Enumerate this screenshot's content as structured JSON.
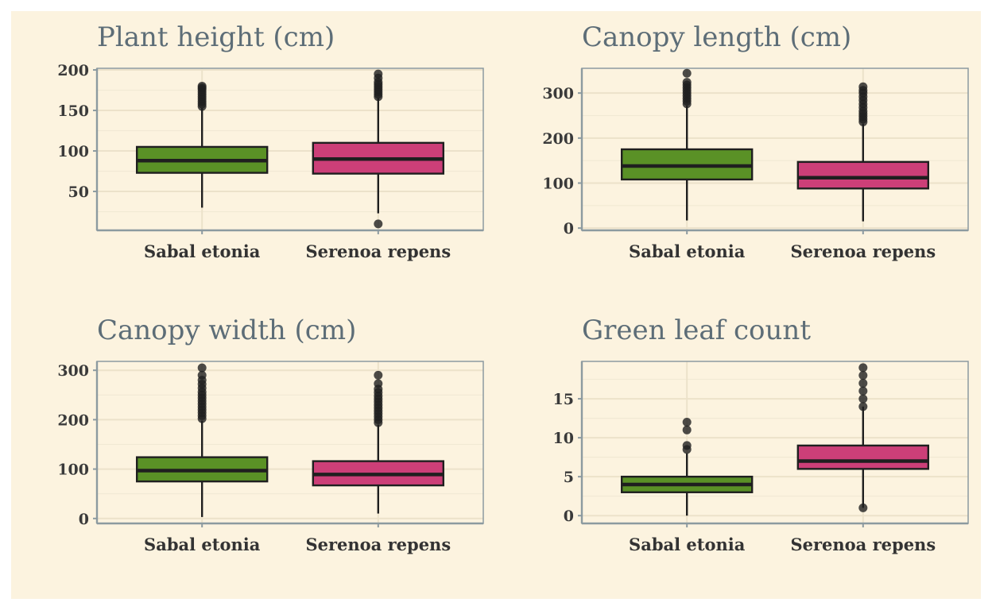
{
  "colors": {
    "background": "#fcf3df",
    "sabal": "#5a9126",
    "serenoa": "#cc3f78",
    "box_stroke": "#1f1f1f",
    "grid_major": "#ece2ca",
    "grid_minor": "#f1e9d4",
    "axis": "#8c9aa0",
    "title": "#5d6d77"
  },
  "chart_data": [
    {
      "type": "boxplot",
      "title": "Plant height (cm)",
      "categories": [
        "Sabal etonia",
        "Serenoa repens"
      ],
      "ylim": [
        2,
        202
      ],
      "yticks": [
        50,
        100,
        150,
        200
      ],
      "yminor": [
        25,
        75,
        125,
        175
      ],
      "boxes": [
        {
          "name": "Sabal etonia",
          "whisker_low": 30,
          "q1": 73,
          "median": 88,
          "q3": 105,
          "whisker_high": 153,
          "outliers": [
            155,
            158,
            161,
            164,
            167,
            170,
            173,
            176,
            178,
            180
          ]
        },
        {
          "name": "Serenoa repens",
          "whisker_low": 23,
          "q1": 72,
          "median": 90,
          "q3": 110,
          "whisker_high": 165,
          "outliers": [
            10,
            167,
            170,
            173,
            176,
            179,
            182,
            185,
            190,
            195
          ]
        }
      ]
    },
    {
      "type": "boxplot",
      "title": "Canopy length (cm)",
      "categories": [
        "Sabal etonia",
        "Serenoa repens"
      ],
      "ylim": [
        -5,
        355
      ],
      "yticks": [
        0,
        100,
        200,
        300
      ],
      "yminor": [
        50,
        150,
        250
      ],
      "boxes": [
        {
          "name": "Sabal etonia",
          "whisker_low": 17,
          "q1": 108,
          "median": 138,
          "q3": 175,
          "whisker_high": 272,
          "outliers": [
            276,
            282,
            288,
            294,
            300,
            306,
            312,
            318,
            324,
            344
          ]
        },
        {
          "name": "Serenoa repens",
          "whisker_low": 15,
          "q1": 88,
          "median": 112,
          "q3": 147,
          "whisker_high": 232,
          "outliers": [
            236,
            242,
            248,
            254,
            260,
            268,
            276,
            284,
            292,
            300,
            306,
            314
          ]
        }
      ]
    },
    {
      "type": "boxplot",
      "title": "Canopy width (cm)",
      "categories": [
        "Sabal etonia",
        "Serenoa repens"
      ],
      "ylim": [
        -10,
        318
      ],
      "yticks": [
        0,
        100,
        200,
        300
      ],
      "yminor": [
        50,
        150,
        250
      ],
      "boxes": [
        {
          "name": "Sabal etonia",
          "whisker_low": 3,
          "q1": 75,
          "median": 97,
          "q3": 124,
          "whisker_high": 198,
          "outliers": [
            202,
            208,
            214,
            220,
            226,
            232,
            238,
            244,
            250,
            256,
            264,
            272,
            280,
            290,
            305
          ]
        },
        {
          "name": "Serenoa repens",
          "whisker_low": 10,
          "q1": 67,
          "median": 89,
          "q3": 116,
          "whisker_high": 190,
          "outliers": [
            194,
            200,
            206,
            212,
            218,
            224,
            230,
            236,
            242,
            248,
            255,
            262,
            273,
            290
          ]
        }
      ]
    },
    {
      "type": "boxplot",
      "title": "Green leaf count",
      "categories": [
        "Sabal etonia",
        "Serenoa repens"
      ],
      "ylim": [
        -1,
        19.8
      ],
      "yticks": [
        0,
        5,
        10,
        15
      ],
      "yminor": [
        2.5,
        7.5,
        12.5,
        17.5
      ],
      "boxes": [
        {
          "name": "Sabal etonia",
          "whisker_low": 0,
          "q1": 3,
          "median": 4,
          "q3": 5,
          "whisker_high": 8,
          "outliers": [
            8.5,
            9,
            11,
            12
          ]
        },
        {
          "name": "Serenoa repens",
          "whisker_low": 1,
          "q1": 6,
          "median": 7,
          "q3": 9,
          "whisker_high": 14,
          "outliers": [
            1,
            14,
            15,
            16,
            17,
            18,
            19
          ]
        }
      ]
    }
  ]
}
